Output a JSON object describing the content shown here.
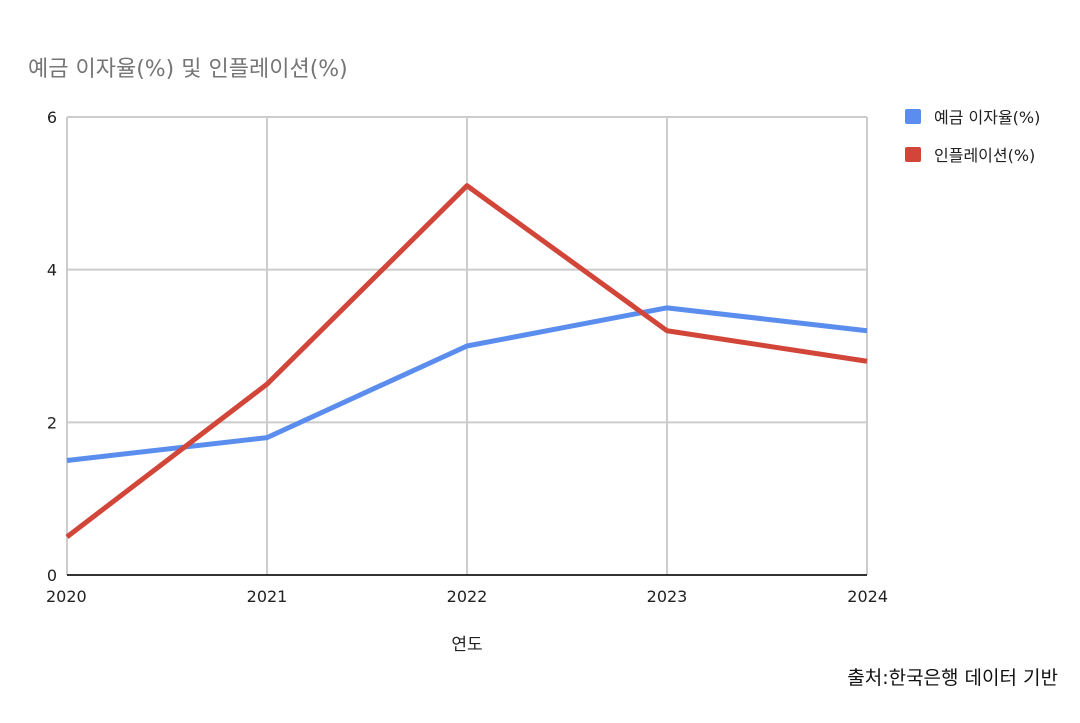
{
  "chart_data": {
    "type": "line",
    "title": "예금 이자율(%) 및 인플레이션(%)",
    "xlabel": "연도",
    "ylabel": "",
    "categories": [
      "2020",
      "2021",
      "2022",
      "2023",
      "2024"
    ],
    "ylim": [
      0,
      6
    ],
    "yticks": [
      "0",
      "2",
      "4",
      "6"
    ],
    "grid": true,
    "legend_position": "right",
    "series": [
      {
        "name": "예금 이자율(%)",
        "color": "#5B8DEF",
        "values": [
          1.5,
          1.8,
          3.0,
          3.5,
          3.2
        ]
      },
      {
        "name": "인플레이션(%)",
        "color": "#D2463A",
        "values": [
          0.5,
          2.5,
          5.1,
          3.2,
          2.8
        ]
      }
    ]
  },
  "source_note": "출처:한국은행 데이터 기반"
}
